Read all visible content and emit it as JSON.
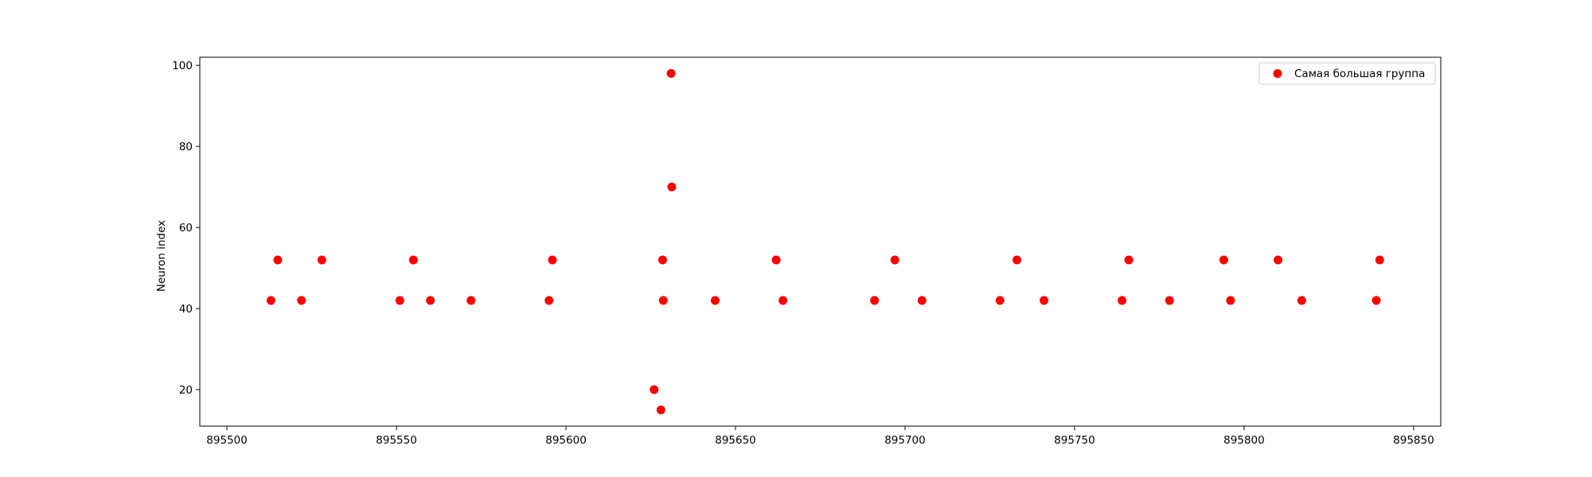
{
  "chart_data": {
    "type": "scatter",
    "title": "",
    "xlabel": "",
    "ylabel": "Neuron index",
    "xlim": [
      895492,
      895858
    ],
    "ylim": [
      11,
      102
    ],
    "xticks": [
      895500,
      895550,
      895600,
      895650,
      895700,
      895750,
      895800,
      895850
    ],
    "yticks": [
      20,
      40,
      60,
      80,
      100
    ],
    "grid": false,
    "legend_position": "top-right",
    "series": [
      {
        "name": "Самая большая группа",
        "color": "#ff0000",
        "marker": "circle",
        "points": [
          {
            "x": 895513,
            "y": 42
          },
          {
            "x": 895515,
            "y": 52
          },
          {
            "x": 895522,
            "y": 42
          },
          {
            "x": 895528,
            "y": 52
          },
          {
            "x": 895551,
            "y": 42
          },
          {
            "x": 895555,
            "y": 52
          },
          {
            "x": 895560,
            "y": 42
          },
          {
            "x": 895572,
            "y": 42
          },
          {
            "x": 895595,
            "y": 42
          },
          {
            "x": 895596,
            "y": 52
          },
          {
            "x": 895626,
            "y": 20
          },
          {
            "x": 895628,
            "y": 15
          },
          {
            "x": 895628.5,
            "y": 52
          },
          {
            "x": 895628.7,
            "y": 42
          },
          {
            "x": 895631,
            "y": 98
          },
          {
            "x": 895631.2,
            "y": 70
          },
          {
            "x": 895644,
            "y": 42
          },
          {
            "x": 895662,
            "y": 52
          },
          {
            "x": 895664,
            "y": 42
          },
          {
            "x": 895691,
            "y": 42
          },
          {
            "x": 895697,
            "y": 52
          },
          {
            "x": 895705,
            "y": 42
          },
          {
            "x": 895728,
            "y": 42
          },
          {
            "x": 895733,
            "y": 52
          },
          {
            "x": 895741,
            "y": 42
          },
          {
            "x": 895764,
            "y": 42
          },
          {
            "x": 895766,
            "y": 52
          },
          {
            "x": 895778,
            "y": 42
          },
          {
            "x": 895794,
            "y": 52
          },
          {
            "x": 895796,
            "y": 42
          },
          {
            "x": 895810,
            "y": 52
          },
          {
            "x": 895817,
            "y": 42
          },
          {
            "x": 895839,
            "y": 42
          },
          {
            "x": 895840,
            "y": 52
          }
        ]
      }
    ]
  }
}
